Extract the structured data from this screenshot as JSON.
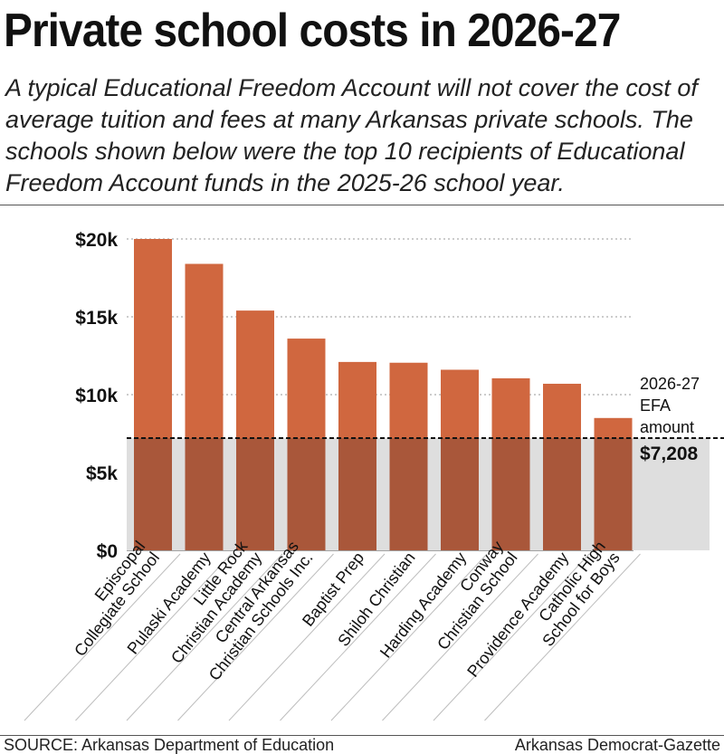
{
  "headline": "Private school costs in 2026-27",
  "subtitle": "A typical Educational Freedom Account will not cover the cost of average tuition and fees at many Arkansas private schools. The schools shown below were the top 10 recipients of Educational Freedom Account funds in the 2025-26 school year.",
  "source": "SOURCE: Arkansas Department of Education",
  "credit": "Arkansas Democrat-Gazette",
  "colors": {
    "bar": "#d0673f",
    "bar_below": "#a9573a",
    "shade": "#dedede"
  },
  "chart_data": {
    "type": "bar",
    "title": "",
    "xlabel": "",
    "ylabel": "",
    "ylim": [
      0,
      20000
    ],
    "y_ticks": [
      0,
      5000,
      10000,
      15000,
      20000
    ],
    "y_tick_labels": [
      "$0",
      "$5k",
      "$10k",
      "$15k",
      "$20k"
    ],
    "grid": true,
    "categories": [
      [
        "Episcopal",
        "Collegiate School"
      ],
      [
        "Pulaski Academy"
      ],
      [
        "Little Rock",
        "Christian Academy"
      ],
      [
        "Central Arkansas",
        "Christian Schools Inc."
      ],
      [
        "Baptist Prep"
      ],
      [
        "Shiloh Christian"
      ],
      [
        "Harding Academy"
      ],
      [
        "Conway",
        "Christian School"
      ],
      [
        "Providence Academy"
      ],
      [
        "Catholic High",
        "School for Boys"
      ]
    ],
    "values": [
      20000,
      18400,
      15400,
      13600,
      12100,
      12050,
      11600,
      11050,
      10700,
      8500
    ],
    "reference_line": {
      "value": 7208,
      "label_lines": [
        "2026-27",
        "EFA",
        "amount"
      ],
      "value_label": "$7,208"
    }
  }
}
